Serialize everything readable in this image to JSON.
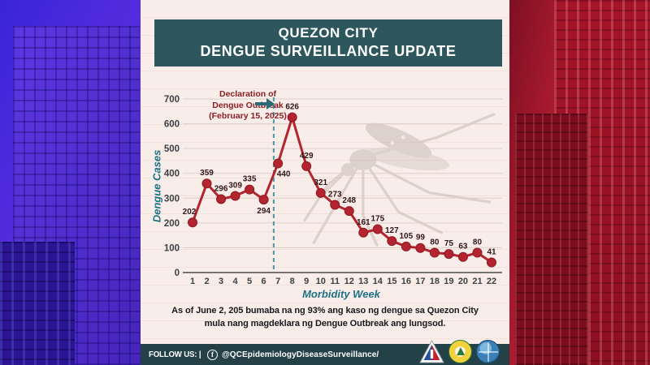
{
  "header": {
    "line1": "QUEZON CITY",
    "line2": "DENGUE SURVEILLANCE UPDATE"
  },
  "chart_data": {
    "type": "line",
    "x": [
      1,
      2,
      3,
      4,
      5,
      6,
      7,
      8,
      9,
      10,
      11,
      12,
      13,
      14,
      15,
      16,
      17,
      18,
      19,
      20,
      21,
      22
    ],
    "values": [
      202,
      359,
      296,
      309,
      335,
      294,
      440,
      626,
      429,
      321,
      273,
      248,
      161,
      175,
      127,
      105,
      99,
      80,
      75,
      63,
      80,
      41
    ],
    "title": "Quezon City Dengue Surveillance Update",
    "xlabel": "Morbidity Week",
    "ylabel": "Dengue Cases",
    "ylim": [
      0,
      700
    ],
    "yticks": [
      0,
      100,
      200,
      300,
      400,
      500,
      600,
      700
    ],
    "grid": true,
    "legend_position": "none",
    "line_color": "#b3242e",
    "marker_color": "#b3242e",
    "marker_stroke": "#8c1a22",
    "value_label_color": "#321719",
    "tick_color": "#3d4145",
    "grid_color": "#ddcfc7",
    "axis_color": "#4a4a4a",
    "label_offsets": {
      "1": [
        -4,
        -10
      ],
      "6": [
        0,
        17
      ],
      "7": [
        7,
        16
      ]
    },
    "annotation": {
      "lines": [
        "Declaration of",
        "Dengue Outbreak",
        "(February 15, 2025)"
      ],
      "color": "#8c1f26",
      "arrow_color": "#2c6b75",
      "line_x": 6.7,
      "line_color": "#4e95a5",
      "line_style": "dashed"
    }
  },
  "caption": {
    "line1": "As of June 2, 205 bumaba na ng 93% ang kaso ng dengue sa Quezon City",
    "line2": "mula nang magdeklara ng Dengue Outbreak ang lungsod."
  },
  "footer": {
    "follow_label": "FOLLOW US: |",
    "facebook_icon_glyph": "f",
    "handle": "@QCEpidemiologyDiseaseSurveillance/",
    "logos": [
      "epidemiology-bureau-triangle-logo",
      "city-health-department-logo",
      "quezon-city-seal-logo"
    ]
  },
  "colors": {
    "header_bg": "#2e575d",
    "footer_bg": "#244148",
    "card_bg": "#f8ede8",
    "bg_left_tint": "#4a2ad6",
    "bg_right_tint": "#c22136",
    "teal_text": "#1d7287"
  }
}
